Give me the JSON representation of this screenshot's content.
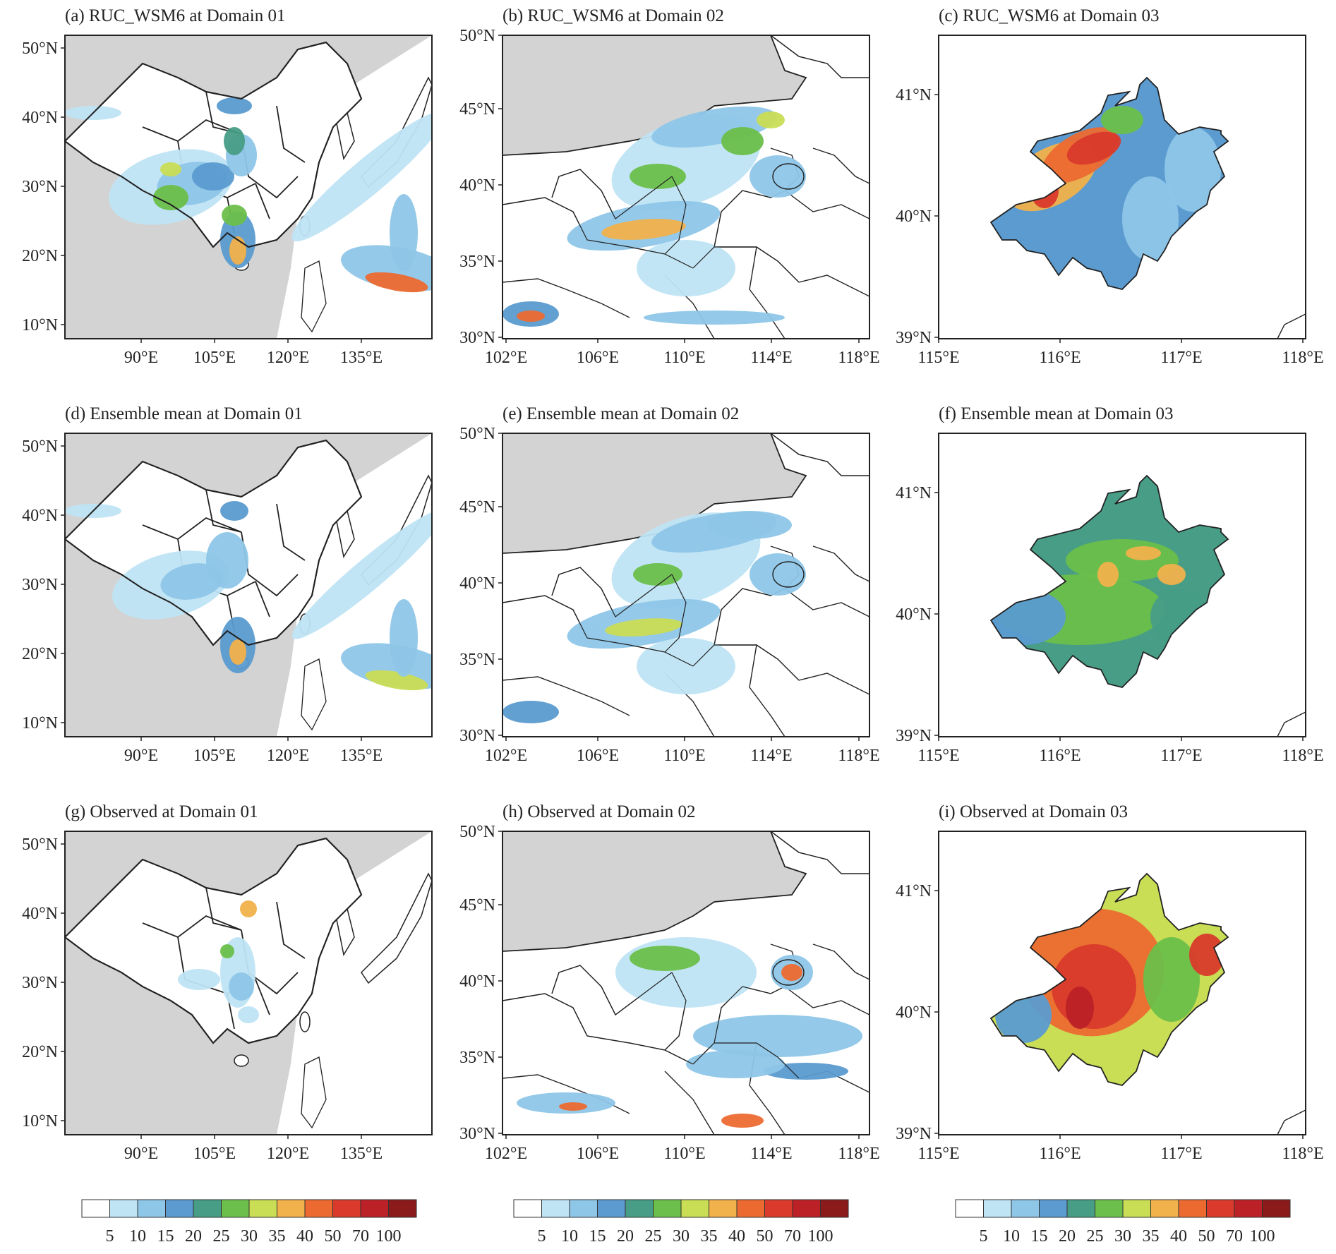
{
  "colors": {
    "land": "#ffffff",
    "outside": "#d3d3d3",
    "border": "#222222",
    "levels": [
      "#ffffff",
      "#bfe4f4",
      "#8ec6e8",
      "#5b9bd0",
      "#479d86",
      "#6cbf4a",
      "#c9dd55",
      "#f1b14b",
      "#ec6a30",
      "#d93a2b",
      "#bb2126",
      "#8b1a1a"
    ]
  },
  "colorbar": {
    "labels": [
      "5",
      "10",
      "15",
      "20",
      "25",
      "30",
      "35",
      "40",
      "50",
      "70",
      "100"
    ]
  },
  "domain01": {
    "lat_ticks": [
      "10°N",
      "20°N",
      "30°N",
      "40°N",
      "50°N"
    ],
    "lon_ticks": [
      "90°E",
      "105°E",
      "120°E",
      "135°E"
    ]
  },
  "domain02": {
    "lat_ticks": [
      "30°N",
      "35°N",
      "40°N",
      "45°N",
      "50°N"
    ],
    "lon_ticks": [
      "102°E",
      "106°E",
      "110°E",
      "114°E",
      "118°E"
    ]
  },
  "domain03": {
    "lat_ticks": [
      "39°N",
      "40°N",
      "41°N"
    ],
    "lon_ticks": [
      "115°E",
      "116°E",
      "117°E",
      "118°E"
    ]
  },
  "panels": [
    {
      "id": "a",
      "title": "(a) RUC_WSM6 at Domain 01",
      "intensity": "model"
    },
    {
      "id": "b",
      "title": "(b) RUC_WSM6 at Domain 02",
      "intensity": "model"
    },
    {
      "id": "c",
      "title": "(c) RUC_WSM6 at Domain 03",
      "intensity": "high"
    },
    {
      "id": "d",
      "title": "(d) Ensemble mean at Domain 01",
      "intensity": "mean"
    },
    {
      "id": "e",
      "title": "(e) Ensemble mean at Domain 02",
      "intensity": "mean"
    },
    {
      "id": "f",
      "title": "(f) Ensemble mean at Domain 03",
      "intensity": "mid"
    },
    {
      "id": "g",
      "title": "(g) Observed at Domain 01",
      "intensity": "obs"
    },
    {
      "id": "h",
      "title": "(h) Observed at Domain 02",
      "intensity": "obs"
    },
    {
      "id": "i",
      "title": "(i) Observed at Domain 03",
      "intensity": "vhigh"
    }
  ]
}
